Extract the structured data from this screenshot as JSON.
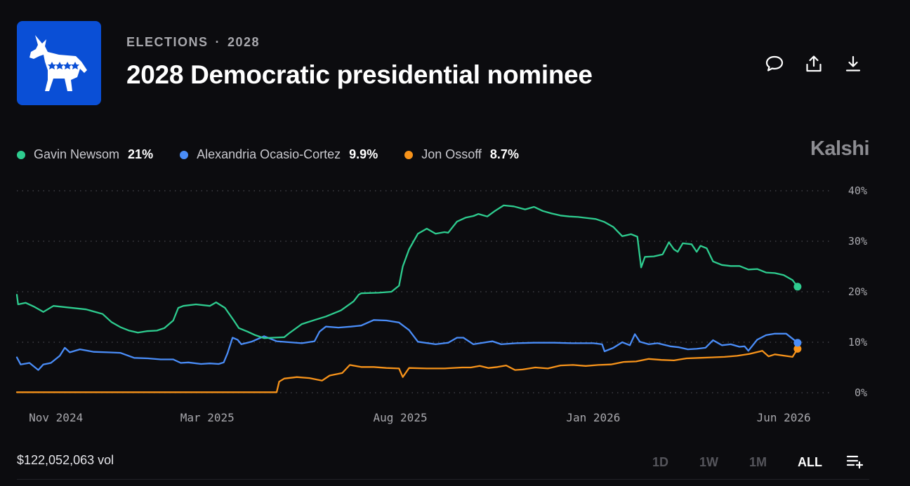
{
  "header": {
    "category": "ELECTIONS",
    "separator": "·",
    "year": "2028",
    "title": "2028 Democratic presidential nominee"
  },
  "logo": {
    "icon": "democratic-donkey-icon",
    "color": "#0a4fd6"
  },
  "actions": [
    {
      "name": "comment-icon",
      "label": "Comment"
    },
    {
      "name": "share-icon",
      "label": "Share"
    },
    {
      "name": "download-icon",
      "label": "Download"
    }
  ],
  "brand": "Kalshi",
  "legend": [
    {
      "name": "Gavin Newsom",
      "value": "21%",
      "color": "#2ecc8f"
    },
    {
      "name": "Alexandria Ocasio-Cortez",
      "value": "9.9%",
      "color": "#4a8df8"
    },
    {
      "name": "Jon Ossoff",
      "value": "8.7%",
      "color": "#f7931a"
    }
  ],
  "footer": {
    "volume": "$122,052,063 vol",
    "ranges": [
      "1D",
      "1W",
      "1M",
      "ALL"
    ],
    "active_range": "ALL",
    "list_icon": "add-to-list-icon"
  },
  "chart_data": {
    "type": "line",
    "x_unit": "date",
    "x_ticks": [
      "Nov 2024",
      "Mar 2025",
      "Aug 2025",
      "Jan 2026",
      "Jun 2026"
    ],
    "x_tick_dates": [
      "2024-11-01",
      "2025-03-01",
      "2025-08-01",
      "2026-01-01",
      "2026-06-01"
    ],
    "y_ticks": [
      "0%",
      "10%",
      "20%",
      "30%",
      "40%"
    ],
    "y_tick_values": [
      0,
      10,
      20,
      30,
      40
    ],
    "ylim": [
      0,
      40
    ],
    "xlim": [
      "2024-10-01",
      "2026-07-01"
    ],
    "grid": "horizontal dotted",
    "y_axis_side": "right",
    "series": [
      {
        "name": "Gavin Newsom",
        "color": "#2ecc8f",
        "points": [
          [
            "2024-10-01",
            19.4
          ],
          [
            "2024-10-02",
            17.5
          ],
          [
            "2024-10-08",
            17.8
          ],
          [
            "2024-10-15",
            17.0
          ],
          [
            "2024-10-22",
            16.0
          ],
          [
            "2024-10-30",
            17.2
          ],
          [
            "2024-11-10",
            16.9
          ],
          [
            "2024-11-25",
            16.5
          ],
          [
            "2024-12-08",
            15.6
          ],
          [
            "2024-12-15",
            14.0
          ],
          [
            "2024-12-22",
            13.0
          ],
          [
            "2024-12-29",
            12.3
          ],
          [
            "2025-01-05",
            11.9
          ],
          [
            "2025-01-12",
            12.2
          ],
          [
            "2025-01-20",
            12.3
          ],
          [
            "2025-01-26",
            12.8
          ],
          [
            "2025-02-02",
            14.3
          ],
          [
            "2025-02-06",
            16.8
          ],
          [
            "2025-02-10",
            17.2
          ],
          [
            "2025-02-20",
            17.5
          ],
          [
            "2025-03-03",
            17.2
          ],
          [
            "2025-03-08",
            17.9
          ],
          [
            "2025-03-15",
            16.8
          ],
          [
            "2025-03-22",
            14.3
          ],
          [
            "2025-03-26",
            12.8
          ],
          [
            "2025-04-02",
            12.1
          ],
          [
            "2025-04-08",
            11.4
          ],
          [
            "2025-04-15",
            10.8
          ],
          [
            "2025-04-22",
            10.9
          ],
          [
            "2025-05-01",
            11.0
          ],
          [
            "2025-05-05",
            11.8
          ],
          [
            "2025-05-15",
            13.6
          ],
          [
            "2025-05-25",
            14.4
          ],
          [
            "2025-06-03",
            15.1
          ],
          [
            "2025-06-15",
            16.3
          ],
          [
            "2025-06-25",
            18.1
          ],
          [
            "2025-06-29",
            19.4
          ],
          [
            "2025-07-01",
            19.7
          ],
          [
            "2025-07-15",
            19.8
          ],
          [
            "2025-07-25",
            20.0
          ],
          [
            "2025-07-31",
            21.2
          ],
          [
            "2025-08-03",
            25.0
          ],
          [
            "2025-08-08",
            28.4
          ],
          [
            "2025-08-15",
            31.5
          ],
          [
            "2025-08-22",
            32.5
          ],
          [
            "2025-08-29",
            31.5
          ],
          [
            "2025-09-05",
            31.8
          ],
          [
            "2025-09-08",
            31.7
          ],
          [
            "2025-09-15",
            33.9
          ],
          [
            "2025-09-22",
            34.7
          ],
          [
            "2025-09-28",
            35.0
          ],
          [
            "2025-10-02",
            35.4
          ],
          [
            "2025-10-09",
            34.9
          ],
          [
            "2025-10-15",
            36.0
          ],
          [
            "2025-10-22",
            37.1
          ],
          [
            "2025-10-30",
            36.9
          ],
          [
            "2025-11-08",
            36.3
          ],
          [
            "2025-11-15",
            36.8
          ],
          [
            "2025-11-22",
            36.0
          ],
          [
            "2025-11-29",
            35.5
          ],
          [
            "2025-12-06",
            35.1
          ],
          [
            "2025-12-13",
            34.9
          ],
          [
            "2025-12-20",
            34.8
          ],
          [
            "2025-12-27",
            34.6
          ],
          [
            "2026-01-03",
            34.4
          ],
          [
            "2026-01-10",
            33.8
          ],
          [
            "2026-01-17",
            32.8
          ],
          [
            "2026-01-24",
            31.0
          ],
          [
            "2026-01-31",
            31.4
          ],
          [
            "2026-02-05",
            30.9
          ],
          [
            "2026-02-08",
            24.8
          ],
          [
            "2026-02-11",
            26.9
          ],
          [
            "2026-02-18",
            27.0
          ],
          [
            "2026-02-25",
            27.4
          ],
          [
            "2026-03-02",
            29.8
          ],
          [
            "2026-03-06",
            28.4
          ],
          [
            "2026-03-09",
            27.9
          ],
          [
            "2026-03-13",
            29.6
          ],
          [
            "2026-03-20",
            29.4
          ],
          [
            "2026-03-24",
            27.9
          ],
          [
            "2026-03-27",
            29.1
          ],
          [
            "2026-04-01",
            28.6
          ],
          [
            "2026-04-06",
            26.0
          ],
          [
            "2026-04-13",
            25.3
          ],
          [
            "2026-04-20",
            25.1
          ],
          [
            "2026-04-27",
            25.1
          ],
          [
            "2026-05-04",
            24.4
          ],
          [
            "2026-05-11",
            24.5
          ],
          [
            "2026-05-18",
            23.8
          ],
          [
            "2026-05-25",
            23.7
          ],
          [
            "2026-06-01",
            23.3
          ],
          [
            "2026-06-08",
            22.3
          ],
          [
            "2026-06-12",
            21.0
          ]
        ]
      },
      {
        "name": "Alexandria Ocasio-Cortez",
        "color": "#4a8df8",
        "points": [
          [
            "2024-10-01",
            7.0
          ],
          [
            "2024-10-04",
            5.6
          ],
          [
            "2024-10-11",
            5.9
          ],
          [
            "2024-10-18",
            4.5
          ],
          [
            "2024-10-22",
            5.6
          ],
          [
            "2024-10-28",
            5.9
          ],
          [
            "2024-11-04",
            7.3
          ],
          [
            "2024-11-08",
            8.9
          ],
          [
            "2024-11-12",
            8.0
          ],
          [
            "2024-11-20",
            8.6
          ],
          [
            "2024-12-01",
            8.1
          ],
          [
            "2024-12-12",
            8.0
          ],
          [
            "2024-12-22",
            7.9
          ],
          [
            "2025-01-02",
            6.9
          ],
          [
            "2025-01-13",
            6.8
          ],
          [
            "2025-01-23",
            6.6
          ],
          [
            "2025-02-02",
            6.6
          ],
          [
            "2025-02-08",
            5.9
          ],
          [
            "2025-02-14",
            6.0
          ],
          [
            "2025-02-24",
            5.7
          ],
          [
            "2025-03-03",
            5.8
          ],
          [
            "2025-03-10",
            5.7
          ],
          [
            "2025-03-14",
            6.0
          ],
          [
            "2025-03-17",
            7.8
          ],
          [
            "2025-03-21",
            10.9
          ],
          [
            "2025-03-25",
            10.5
          ],
          [
            "2025-03-28",
            9.6
          ],
          [
            "2025-04-05",
            10.1
          ],
          [
            "2025-04-15",
            11.2
          ],
          [
            "2025-04-25",
            10.2
          ],
          [
            "2025-05-05",
            10.0
          ],
          [
            "2025-05-15",
            9.8
          ],
          [
            "2025-05-25",
            10.2
          ],
          [
            "2025-05-29",
            12.1
          ],
          [
            "2025-06-03",
            13.1
          ],
          [
            "2025-06-13",
            12.9
          ],
          [
            "2025-06-23",
            13.1
          ],
          [
            "2025-07-01",
            13.3
          ],
          [
            "2025-07-11",
            14.4
          ],
          [
            "2025-07-21",
            14.3
          ],
          [
            "2025-07-31",
            13.9
          ],
          [
            "2025-08-08",
            12.4
          ],
          [
            "2025-08-15",
            10.1
          ],
          [
            "2025-08-29",
            9.6
          ],
          [
            "2025-09-08",
            9.9
          ],
          [
            "2025-09-15",
            10.9
          ],
          [
            "2025-09-20",
            10.9
          ],
          [
            "2025-09-28",
            9.6
          ],
          [
            "2025-10-13",
            10.2
          ],
          [
            "2025-10-20",
            9.6
          ],
          [
            "2025-11-01",
            9.8
          ],
          [
            "2025-11-15",
            9.9
          ],
          [
            "2025-12-01",
            9.9
          ],
          [
            "2025-12-15",
            9.8
          ],
          [
            "2026-01-01",
            9.8
          ],
          [
            "2026-01-08",
            9.6
          ],
          [
            "2026-01-10",
            8.2
          ],
          [
            "2026-01-17",
            8.9
          ],
          [
            "2026-01-24",
            10.0
          ],
          [
            "2026-01-30",
            9.4
          ],
          [
            "2026-02-03",
            11.6
          ],
          [
            "2026-02-07",
            10.1
          ],
          [
            "2026-02-14",
            9.6
          ],
          [
            "2026-02-21",
            9.8
          ],
          [
            "2026-03-03",
            9.2
          ],
          [
            "2026-03-10",
            9.0
          ],
          [
            "2026-03-17",
            8.6
          ],
          [
            "2026-03-24",
            8.7
          ],
          [
            "2026-03-31",
            8.9
          ],
          [
            "2026-04-06",
            10.4
          ],
          [
            "2026-04-13",
            9.4
          ],
          [
            "2026-04-20",
            9.6
          ],
          [
            "2026-04-27",
            9.1
          ],
          [
            "2026-05-01",
            9.2
          ],
          [
            "2026-05-04",
            8.3
          ],
          [
            "2026-05-11",
            10.5
          ],
          [
            "2026-05-18",
            11.4
          ],
          [
            "2026-05-25",
            11.7
          ],
          [
            "2026-06-03",
            11.7
          ],
          [
            "2026-06-12",
            9.9
          ]
        ]
      },
      {
        "name": "Jon Ossoff",
        "color": "#f7931a",
        "points": [
          [
            "2024-10-01",
            0.1
          ],
          [
            "2025-04-25",
            0.1
          ],
          [
            "2025-04-27",
            2.2
          ],
          [
            "2025-05-01",
            2.8
          ],
          [
            "2025-05-11",
            3.1
          ],
          [
            "2025-05-21",
            2.9
          ],
          [
            "2025-05-31",
            2.4
          ],
          [
            "2025-06-06",
            3.4
          ],
          [
            "2025-06-16",
            3.9
          ],
          [
            "2025-06-22",
            5.5
          ],
          [
            "2025-07-01",
            5.1
          ],
          [
            "2025-07-11",
            5.1
          ],
          [
            "2025-07-21",
            4.9
          ],
          [
            "2025-07-31",
            4.8
          ],
          [
            "2025-08-03",
            3.1
          ],
          [
            "2025-08-08",
            4.9
          ],
          [
            "2025-08-22",
            4.8
          ],
          [
            "2025-09-05",
            4.8
          ],
          [
            "2025-09-19",
            5.0
          ],
          [
            "2025-09-26",
            5.0
          ],
          [
            "2025-10-03",
            5.3
          ],
          [
            "2025-10-10",
            4.9
          ],
          [
            "2025-10-17",
            5.1
          ],
          [
            "2025-10-24",
            5.4
          ],
          [
            "2025-10-31",
            4.5
          ],
          [
            "2025-11-06",
            4.6
          ],
          [
            "2025-11-16",
            5.0
          ],
          [
            "2025-11-26",
            4.8
          ],
          [
            "2025-12-06",
            5.4
          ],
          [
            "2025-12-16",
            5.5
          ],
          [
            "2025-12-26",
            5.3
          ],
          [
            "2026-01-05",
            5.5
          ],
          [
            "2026-01-15",
            5.6
          ],
          [
            "2026-01-25",
            6.1
          ],
          [
            "2026-02-04",
            6.2
          ],
          [
            "2026-02-14",
            6.7
          ],
          [
            "2026-02-24",
            6.5
          ],
          [
            "2026-03-06",
            6.4
          ],
          [
            "2026-03-16",
            6.8
          ],
          [
            "2026-03-26",
            6.9
          ],
          [
            "2026-04-05",
            7.0
          ],
          [
            "2026-04-15",
            7.1
          ],
          [
            "2026-04-25",
            7.3
          ],
          [
            "2026-05-05",
            7.7
          ],
          [
            "2026-05-15",
            8.3
          ],
          [
            "2026-05-20",
            7.2
          ],
          [
            "2026-05-25",
            7.6
          ],
          [
            "2026-06-02",
            7.3
          ],
          [
            "2026-06-08",
            7.1
          ],
          [
            "2026-06-12",
            8.7
          ]
        ]
      }
    ]
  }
}
